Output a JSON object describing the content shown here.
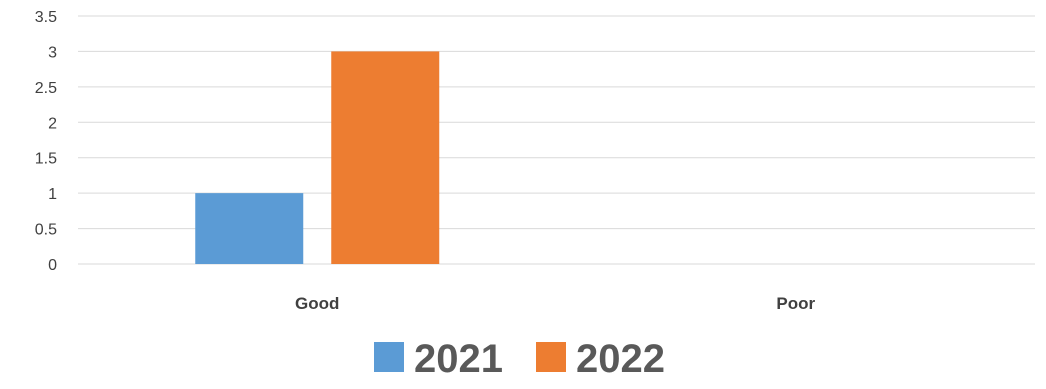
{
  "chart_data": {
    "type": "bar",
    "categories": [
      "Good",
      "Poor"
    ],
    "series": [
      {
        "name": "2021",
        "values": [
          1,
          0
        ],
        "color": "#5B9BD5"
      },
      {
        "name": "2022",
        "values": [
          3,
          0
        ],
        "color": "#ED7D31"
      }
    ],
    "title": "",
    "xlabel": "",
    "ylabel": "",
    "ylim": [
      0,
      3.5
    ],
    "yticks": [
      "0",
      "0.5",
      "1",
      "1.5",
      "2",
      "2.5",
      "3",
      "3.5"
    ],
    "grid": true,
    "legend": "bottom"
  }
}
